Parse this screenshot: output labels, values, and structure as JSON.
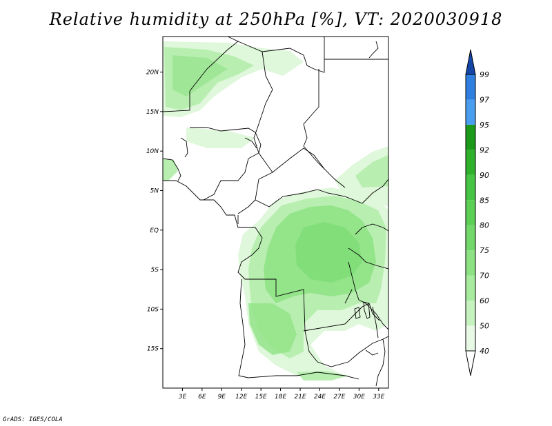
{
  "title": "Relative humidity at 250hPa [%], VT: 2020030918",
  "credit": "GrADS: IGES/COLA",
  "map": {
    "lon_range": [
      0,
      34.5
    ],
    "lat_range": [
      -20,
      24.5
    ],
    "lat_ticks": [
      {
        "value": 20,
        "label": "20N"
      },
      {
        "value": 15,
        "label": "15N"
      },
      {
        "value": 10,
        "label": "10N"
      },
      {
        "value": 5,
        "label": "5N"
      },
      {
        "value": 0,
        "label": "EQ"
      },
      {
        "value": -5,
        "label": "5S"
      },
      {
        "value": -10,
        "label": "10S"
      },
      {
        "value": -15,
        "label": "15S"
      }
    ],
    "lon_ticks": [
      {
        "value": 3,
        "label": "3E"
      },
      {
        "value": 6,
        "label": "6E"
      },
      {
        "value": 9,
        "label": "9E"
      },
      {
        "value": 12,
        "label": "12E"
      },
      {
        "value": 15,
        "label": "15E"
      },
      {
        "value": 18,
        "label": "18E"
      },
      {
        "value": 21,
        "label": "21E"
      },
      {
        "value": 24,
        "label": "24E"
      },
      {
        "value": 27,
        "label": "27E"
      },
      {
        "value": 30,
        "label": "30E"
      },
      {
        "value": 33,
        "label": "33E"
      }
    ]
  },
  "colorbar": {
    "levels": [
      "40",
      "50",
      "60",
      "70",
      "75",
      "80",
      "85",
      "90",
      "92",
      "95",
      "97",
      "99"
    ],
    "colors": [
      "#e8fae6",
      "#c6f2c0",
      "#a6eb9e",
      "#8ce283",
      "#72d86a",
      "#5ccf55",
      "#47c443",
      "#2fb12c",
      "#1a9a18",
      "#4a9ef0",
      "#2f7fe0",
      "#1c62c8",
      "#1446a8"
    ],
    "extend": "both"
  },
  "colors": {
    "land_line": "#000000",
    "fill_low": "#dff7da",
    "fill_mid": "#b8efb1",
    "fill_high": "#94e48a"
  }
}
